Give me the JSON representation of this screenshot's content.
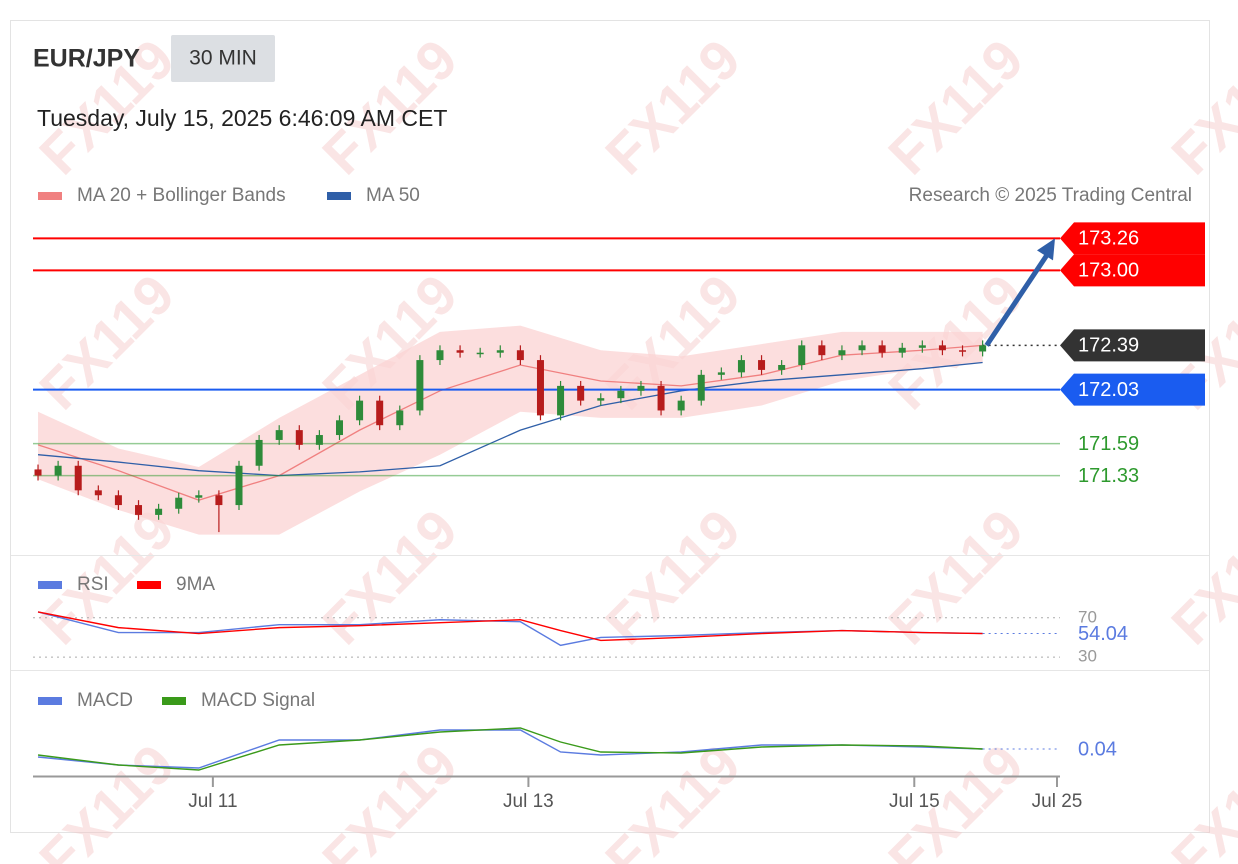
{
  "header": {
    "symbol": "EUR/JPY",
    "interval": "30 MIN",
    "timestamp": "Tuesday, July 15, 2025 6:46:09 AM CET"
  },
  "credit": "Research © 2025 Trading Central",
  "watermark": "FX119",
  "chart_data": [
    {
      "type": "candlestick",
      "x": [
        0,
        1,
        2,
        3,
        4,
        5,
        6,
        7,
        8,
        9,
        10,
        11,
        12,
        13,
        14,
        15,
        16,
        17,
        18,
        19,
        20,
        21,
        22,
        23,
        24,
        25,
        26,
        27,
        28,
        29,
        30,
        31,
        32,
        33,
        34,
        35,
        36,
        37,
        38,
        39,
        40,
        41,
        42,
        43,
        44,
        45,
        46,
        47
      ],
      "open": [
        171.38,
        171.33,
        171.41,
        171.21,
        171.17,
        171.09,
        171.01,
        171.06,
        171.15,
        171.17,
        171.09,
        171.41,
        171.62,
        171.7,
        171.58,
        171.66,
        171.78,
        171.94,
        171.74,
        171.86,
        172.27,
        172.35,
        172.33,
        172.33,
        172.35,
        172.27,
        171.82,
        172.06,
        171.94,
        171.96,
        172.02,
        172.06,
        171.86,
        171.94,
        172.15,
        172.17,
        172.27,
        172.19,
        172.23,
        172.39,
        172.31,
        172.35,
        172.39,
        172.33,
        172.37,
        172.39,
        172.35,
        172.34
      ],
      "high": [
        171.42,
        171.45,
        171.45,
        171.25,
        171.21,
        171.13,
        171.1,
        171.19,
        171.21,
        171.21,
        171.45,
        171.66,
        171.74,
        171.74,
        171.7,
        171.82,
        171.98,
        171.98,
        171.9,
        172.31,
        172.39,
        172.39,
        172.37,
        172.39,
        172.39,
        172.31,
        172.1,
        172.1,
        172.0,
        172.06,
        172.1,
        172.1,
        171.98,
        172.19,
        172.21,
        172.31,
        172.31,
        172.27,
        172.43,
        172.43,
        172.39,
        172.43,
        172.43,
        172.41,
        172.43,
        172.43,
        172.39,
        172.43
      ],
      "low": [
        171.29,
        171.29,
        171.17,
        171.13,
        171.05,
        170.97,
        170.97,
        171.02,
        171.11,
        170.87,
        171.05,
        171.37,
        171.58,
        171.54,
        171.54,
        171.62,
        171.74,
        171.7,
        171.7,
        171.82,
        172.23,
        172.29,
        172.29,
        172.29,
        172.23,
        171.78,
        171.78,
        171.9,
        171.9,
        171.92,
        171.98,
        171.82,
        171.82,
        171.9,
        172.11,
        172.13,
        172.15,
        172.15,
        172.19,
        172.27,
        172.27,
        172.31,
        172.29,
        172.29,
        172.33,
        172.31,
        172.3,
        172.3
      ],
      "close": [
        171.33,
        171.41,
        171.21,
        171.17,
        171.09,
        171.01,
        171.06,
        171.15,
        171.17,
        171.09,
        171.41,
        171.62,
        171.7,
        171.58,
        171.66,
        171.78,
        171.94,
        171.74,
        171.86,
        172.27,
        172.35,
        172.33,
        172.33,
        172.35,
        172.27,
        171.82,
        172.06,
        171.94,
        171.96,
        172.02,
        172.06,
        171.86,
        171.94,
        172.15,
        172.17,
        172.27,
        172.19,
        172.23,
        172.39,
        172.31,
        172.35,
        172.39,
        172.33,
        172.37,
        172.39,
        172.35,
        172.34,
        172.39
      ],
      "up_color": "#2e8b3a",
      "down_color": "#b71c1c",
      "series": [
        {
          "name": "MA 20 + Bollinger Bands",
          "color": "#f08080",
          "band_color": "#fbd3d3",
          "x": [
            0,
            4,
            8,
            12,
            16,
            20,
            24,
            28,
            32,
            36,
            40,
            44,
            47
          ],
          "values": [
            171.58,
            171.37,
            171.13,
            171.33,
            171.7,
            172.02,
            172.23,
            172.1,
            172.06,
            172.15,
            172.31,
            172.35,
            172.39
          ],
          "upper": [
            171.85,
            171.55,
            171.4,
            171.8,
            172.15,
            172.5,
            172.55,
            172.35,
            172.3,
            172.4,
            172.5,
            172.5,
            172.5
          ],
          "lower": [
            171.3,
            171.05,
            170.85,
            170.85,
            171.2,
            171.5,
            171.85,
            171.8,
            171.8,
            171.9,
            172.1,
            172.2,
            172.25
          ]
        },
        {
          "name": "MA 50",
          "color": "#2f5fa8",
          "x": [
            0,
            4,
            8,
            12,
            16,
            20,
            24,
            28,
            32,
            36,
            40,
            44,
            47
          ],
          "values": [
            171.5,
            171.44,
            171.37,
            171.33,
            171.36,
            171.41,
            171.7,
            171.9,
            172.02,
            172.1,
            172.15,
            172.2,
            172.25
          ]
        }
      ],
      "levels": [
        {
          "value": 173.26,
          "color": "#ff0000",
          "line": "solid",
          "tag": "box"
        },
        {
          "value": 173,
          "label": "173.00",
          "color": "#ff0000",
          "line": "solid",
          "tag": "box"
        },
        {
          "value": 172.39,
          "color": "#333333",
          "line": "dotted",
          "tag": "box"
        },
        {
          "value": 172.03,
          "color": "#1a5cf0",
          "line": "solid",
          "tag": "box"
        },
        {
          "value": 171.59,
          "color": "#2e9a2e",
          "line": "solid",
          "tag": "text"
        },
        {
          "value": 171.33,
          "color": "#2e9a2e",
          "line": "solid",
          "tag": "text"
        }
      ],
      "xlim": [
        -0.25,
        50.85
      ],
      "ylim": [
        170.7,
        173.41
      ]
    },
    {
      "type": "line",
      "x": [
        0,
        4,
        8,
        12,
        16,
        20,
        24,
        26,
        28,
        32,
        36,
        40,
        44,
        47
      ],
      "series": [
        {
          "name": "RSI",
          "color": "#5b7be0",
          "values": [
            76,
            55,
            55,
            63,
            63,
            68,
            66,
            42,
            50,
            52,
            55,
            57,
            55,
            54.04
          ]
        },
        {
          "name": "9MA",
          "color": "#ff0000",
          "values": [
            76,
            60,
            54,
            60,
            62,
            65,
            68,
            57,
            47,
            50,
            54,
            57,
            55,
            54
          ]
        }
      ],
      "xlim": [
        -0.25,
        50.85
      ],
      "ylim": [
        22,
        83
      ],
      "yticks": [
        30,
        70
      ]
    },
    {
      "type": "line",
      "x": [
        0,
        4,
        8,
        12,
        16,
        20,
        24,
        26,
        28,
        32,
        36,
        40,
        44,
        47
      ],
      "series": [
        {
          "name": "MACD",
          "color": "#5b7be0",
          "values": [
            -0.04,
            -0.12,
            -0.15,
            0.13,
            0.13,
            0.23,
            0.23,
            0.01,
            -0.02,
            0.01,
            0.08,
            0.08,
            0.06,
            0.04
          ]
        },
        {
          "name": "MACD Signal",
          "color": "#3a9a1a",
          "values": [
            -0.02,
            -0.12,
            -0.17,
            0.08,
            0.13,
            0.21,
            0.25,
            0.11,
            0.01,
            0.0,
            0.06,
            0.08,
            0.07,
            0.04
          ]
        }
      ],
      "xlim": [
        -0.25,
        50.85
      ],
      "ylim": [
        -0.25,
        0.33
      ],
      "xticks": [
        {
          "value": 8.7,
          "label": "Jul 11"
        },
        {
          "value": 24.4,
          "label": "Jul 13"
        },
        {
          "value": 43.6,
          "label": "Jul 15"
        },
        {
          "value": 50.7,
          "label": "Jul 25"
        }
      ]
    }
  ]
}
